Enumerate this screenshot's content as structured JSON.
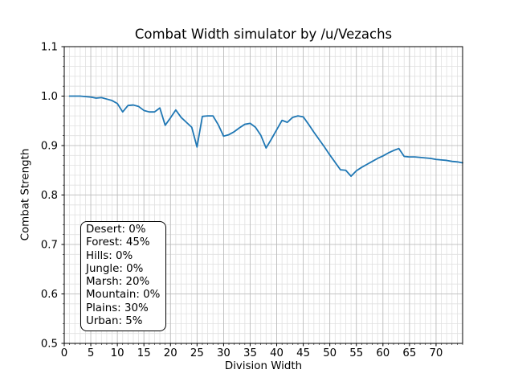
{
  "chart_data": {
    "type": "line",
    "title": "Combat Width simulator by /u/Vezachs",
    "xlabel": "Division Width",
    "ylabel": "Combat Strength",
    "xlim": [
      0,
      75
    ],
    "ylim": [
      0.5,
      1.1
    ],
    "x_major_ticks": [
      0,
      5,
      10,
      15,
      20,
      25,
      30,
      35,
      40,
      45,
      50,
      55,
      60,
      65,
      70
    ],
    "x_minor_step": 1,
    "y_major_ticks": [
      0.5,
      0.6,
      0.7,
      0.8,
      0.9,
      1.0,
      1.1
    ],
    "y_minor_step": 0.02,
    "grid": "both",
    "legend_position": "none",
    "line_color": "#1f77b4",
    "major_grid_color": "#b8b8b8",
    "minor_grid_color": "#e0e0e0",
    "spine_color": "#000000",
    "series": [
      {
        "name": "combat-strength",
        "x": [
          1,
          2,
          3,
          4,
          5,
          6,
          7,
          8,
          9,
          10,
          11,
          12,
          13,
          14,
          15,
          16,
          17,
          18,
          19,
          20,
          21,
          22,
          23,
          24,
          25,
          26,
          27,
          28,
          29,
          30,
          31,
          32,
          33,
          34,
          35,
          36,
          37,
          38,
          39,
          40,
          41,
          42,
          43,
          44,
          45,
          46,
          47,
          48,
          49,
          50,
          51,
          52,
          53,
          54,
          55,
          56,
          57,
          58,
          59,
          60,
          61,
          62,
          63,
          64,
          65,
          66,
          67,
          68,
          69,
          70,
          71,
          72,
          73,
          74,
          75
        ],
        "values": [
          1.0,
          1.0,
          1.0,
          0.999,
          0.998,
          0.996,
          0.997,
          0.994,
          0.991,
          0.985,
          0.968,
          0.981,
          0.982,
          0.979,
          0.971,
          0.968,
          0.968,
          0.976,
          0.941,
          0.956,
          0.972,
          0.957,
          0.947,
          0.937,
          0.897,
          0.959,
          0.96,
          0.96,
          0.942,
          0.919,
          0.922,
          0.928,
          0.936,
          0.943,
          0.945,
          0.937,
          0.921,
          0.895,
          0.913,
          0.932,
          0.951,
          0.947,
          0.957,
          0.96,
          0.958,
          0.943,
          0.927,
          0.912,
          0.897,
          0.881,
          0.866,
          0.851,
          0.85,
          0.838,
          0.849,
          0.856,
          0.862,
          0.868,
          0.874,
          0.879,
          0.885,
          0.89,
          0.894,
          0.878,
          0.877,
          0.877,
          0.876,
          0.875,
          0.874,
          0.872,
          0.871,
          0.87,
          0.868,
          0.867,
          0.865
        ]
      }
    ],
    "annotation": {
      "lines": [
        "Desert: 0%",
        "Forest: 45%",
        "Hills: 0%",
        "Jungle: 0%",
        "Marsh: 20%",
        "Mountain: 0%",
        "Plains: 30%",
        "Urban: 5%"
      ]
    }
  }
}
